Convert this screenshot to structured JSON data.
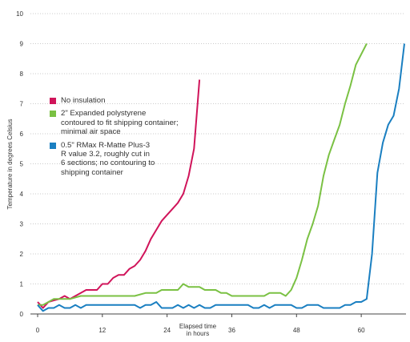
{
  "chart_data": {
    "type": "line",
    "xlabel": "Elapsed time\nin hours",
    "ylabel": "Temperature in degrees Celsius",
    "xlim": [
      0,
      68
    ],
    "ylim": [
      0,
      10
    ],
    "xticks": [
      0,
      12,
      24,
      36,
      48,
      60
    ],
    "yticks": [
      0,
      1,
      2,
      3,
      4,
      5,
      6,
      7,
      8,
      9,
      10
    ],
    "grid": "horizontal dotted",
    "legend_position": "left",
    "series": [
      {
        "name": "No insulation",
        "color": "#d0145a",
        "points": [
          [
            0,
            0.4
          ],
          [
            1,
            0.2
          ],
          [
            2,
            0.4
          ],
          [
            3,
            0.45
          ],
          [
            4,
            0.5
          ],
          [
            5,
            0.6
          ],
          [
            6,
            0.5
          ],
          [
            7,
            0.6
          ],
          [
            8,
            0.7
          ],
          [
            9,
            0.8
          ],
          [
            10,
            0.8
          ],
          [
            11,
            0.8
          ],
          [
            12,
            1.0
          ],
          [
            13,
            1.0
          ],
          [
            14,
            1.2
          ],
          [
            15,
            1.3
          ],
          [
            16,
            1.3
          ],
          [
            17,
            1.5
          ],
          [
            18,
            1.6
          ],
          [
            19,
            1.8
          ],
          [
            20,
            2.1
          ],
          [
            21,
            2.5
          ],
          [
            22,
            2.8
          ],
          [
            23,
            3.1
          ],
          [
            24,
            3.3
          ],
          [
            25,
            3.5
          ],
          [
            26,
            3.7
          ],
          [
            27,
            4.0
          ],
          [
            28,
            4.6
          ],
          [
            29,
            5.5
          ],
          [
            30,
            7.8
          ]
        ]
      },
      {
        "name": "2\" Expanded polystyrene\ncontoured to fit shipping container;\nminimal air space",
        "color": "#7ac143",
        "points": [
          [
            0,
            0.3
          ],
          [
            1,
            0.3
          ],
          [
            2,
            0.4
          ],
          [
            3,
            0.5
          ],
          [
            4,
            0.5
          ],
          [
            6,
            0.5
          ],
          [
            8,
            0.6
          ],
          [
            10,
            0.6
          ],
          [
            12,
            0.6
          ],
          [
            14,
            0.6
          ],
          [
            16,
            0.6
          ],
          [
            18,
            0.6
          ],
          [
            20,
            0.7
          ],
          [
            22,
            0.7
          ],
          [
            23,
            0.8
          ],
          [
            26,
            0.8
          ],
          [
            27,
            1.0
          ],
          [
            28,
            0.9
          ],
          [
            30,
            0.9
          ],
          [
            31,
            0.8
          ],
          [
            33,
            0.8
          ],
          [
            34,
            0.7
          ],
          [
            35,
            0.7
          ],
          [
            36,
            0.6
          ],
          [
            42,
            0.6
          ],
          [
            43,
            0.7
          ],
          [
            45,
            0.7
          ],
          [
            46,
            0.6
          ],
          [
            47,
            0.8
          ],
          [
            48,
            1.2
          ],
          [
            49,
            1.8
          ],
          [
            50,
            2.5
          ],
          [
            51,
            3.0
          ],
          [
            52,
            3.6
          ],
          [
            53,
            4.6
          ],
          [
            54,
            5.3
          ],
          [
            55,
            5.8
          ],
          [
            56,
            6.3
          ],
          [
            57,
            7.0
          ],
          [
            58,
            7.6
          ],
          [
            59,
            8.3
          ],
          [
            61,
            9.0
          ]
        ]
      },
      {
        "name": "0.5\" RMax R-Matte Plus-3\nR value 3.2, roughly cut in\n6 sections; no contouring to\nshipping container",
        "color": "#1a7fc1",
        "points": [
          [
            0,
            0.3
          ],
          [
            1,
            0.1
          ],
          [
            2,
            0.2
          ],
          [
            3,
            0.2
          ],
          [
            4,
            0.3
          ],
          [
            5,
            0.2
          ],
          [
            6,
            0.2
          ],
          [
            7,
            0.3
          ],
          [
            8,
            0.2
          ],
          [
            9,
            0.3
          ],
          [
            18,
            0.3
          ],
          [
            19,
            0.2
          ],
          [
            20,
            0.3
          ],
          [
            21,
            0.3
          ],
          [
            22,
            0.4
          ],
          [
            23,
            0.2
          ],
          [
            25,
            0.2
          ],
          [
            26,
            0.3
          ],
          [
            27,
            0.2
          ],
          [
            28,
            0.3
          ],
          [
            29,
            0.2
          ],
          [
            30,
            0.3
          ],
          [
            31,
            0.2
          ],
          [
            32,
            0.2
          ],
          [
            33,
            0.3
          ],
          [
            39,
            0.3
          ],
          [
            40,
            0.2
          ],
          [
            41,
            0.2
          ],
          [
            42,
            0.3
          ],
          [
            43,
            0.2
          ],
          [
            44,
            0.3
          ],
          [
            47,
            0.3
          ],
          [
            48,
            0.2
          ],
          [
            49,
            0.2
          ],
          [
            50,
            0.3
          ],
          [
            52,
            0.3
          ],
          [
            53,
            0.2
          ],
          [
            56,
            0.2
          ],
          [
            57,
            0.3
          ],
          [
            58,
            0.3
          ],
          [
            59,
            0.4
          ],
          [
            60,
            0.4
          ],
          [
            61,
            0.5
          ],
          [
            62,
            2.0
          ],
          [
            63,
            4.7
          ],
          [
            64,
            5.7
          ],
          [
            65,
            6.3
          ],
          [
            66,
            6.6
          ],
          [
            67,
            7.5
          ],
          [
            68,
            9.0
          ]
        ]
      }
    ]
  }
}
